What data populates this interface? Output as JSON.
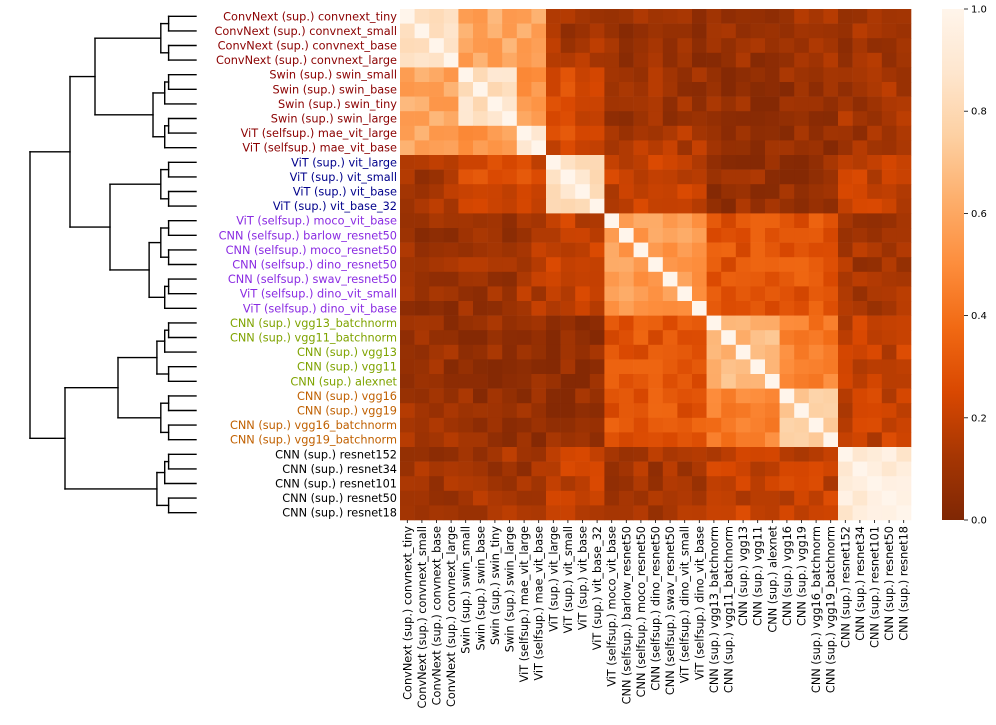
{
  "chart_data": {
    "type": "heatmap",
    "title": "",
    "xlabel": "",
    "ylabel": "",
    "row_labels": [
      "ConvNext (sup.) convnext_tiny",
      "ConvNext (sup.) convnext_small",
      "ConvNext (sup.) convnext_base",
      "ConvNext (sup.) convnext_large",
      "Swin (sup.) swin_small",
      "Swin (sup.) swin_base",
      "Swin (sup.) swin_tiny",
      "Swin (sup.) swin_large",
      "ViT (selfsup.) mae_vit_large",
      "ViT (selfsup.) mae_vit_base",
      "ViT (sup.) vit_large",
      "ViT (sup.) vit_small",
      "ViT (sup.) vit_base",
      "ViT (sup.) vit_base_32",
      "ViT (selfsup.) moco_vit_base",
      "CNN (selfsup.) barlow_resnet50",
      "CNN (selfsup.) moco_resnet50",
      "CNN (selfsup.) dino_resnet50",
      "CNN (selfsup.) swav_resnet50",
      "ViT (selfsup.) dino_vit_small",
      "ViT (selfsup.) dino_vit_base",
      "CNN (sup.) vgg13_batchnorm",
      "CNN (sup.) vgg11_batchnorm",
      "CNN (sup.) vgg13",
      "CNN (sup.) vgg11",
      "CNN (sup.) alexnet",
      "CNN (sup.) vgg16",
      "CNN (sup.) vgg19",
      "CNN (sup.) vgg16_batchnorm",
      "CNN (sup.) vgg19_batchnorm",
      "CNN (sup.) resnet152",
      "CNN (sup.) resnet34",
      "CNN (sup.) resnet101",
      "CNN (sup.) resnet50",
      "CNN (sup.) resnet18"
    ],
    "col_labels": [
      "ConvNext (sup.) convnext_tiny",
      "ConvNext (sup.) convnext_small",
      "ConvNext (sup.) convnext_base",
      "ConvNext (sup.) convnext_large",
      "Swin (sup.) swin_small",
      "Swin (sup.) swin_base",
      "Swin (sup.) swin_tiny",
      "Swin (sup.) swin_large",
      "ViT (selfsup.) mae_vit_large",
      "ViT (selfsup.) mae_vit_base",
      "ViT (sup.) vit_large",
      "ViT (sup.) vit_small",
      "ViT (sup.) vit_base",
      "ViT (sup.) vit_base_32",
      "ViT (selfsup.) moco_vit_base",
      "CNN (selfsup.) barlow_resnet50",
      "CNN (selfsup.) moco_resnet50",
      "CNN (selfsup.) dino_resnet50",
      "CNN (selfsup.) swav_resnet50",
      "ViT (selfsup.) dino_vit_small",
      "ViT (selfsup.) dino_vit_base",
      "CNN (sup.) vgg13_batchnorm",
      "CNN (sup.) vgg11_batchnorm",
      "CNN (sup.) vgg13",
      "CNN (sup.) vgg11",
      "CNN (sup.) alexnet",
      "CNN (sup.) vgg16",
      "CNN (sup.) vgg19",
      "CNN (sup.) vgg16_batchnorm",
      "CNN (sup.) vgg19_batchnorm",
      "CNN (sup.) resnet152",
      "CNN (sup.) resnet34",
      "CNN (sup.) resnet101",
      "CNN (sup.) resnet50",
      "CNN (sup.) resnet18"
    ],
    "row_label_colors": [
      "#8b0000",
      "#8b0000",
      "#8b0000",
      "#8b0000",
      "#8b0000",
      "#8b0000",
      "#8b0000",
      "#8b0000",
      "#8b0000",
      "#8b0000",
      "#00008b",
      "#00008b",
      "#00008b",
      "#00008b",
      "#8a2be2",
      "#8a2be2",
      "#8a2be2",
      "#8a2be2",
      "#8a2be2",
      "#8a2be2",
      "#8a2be2",
      "#7fa300",
      "#7fa300",
      "#7fa300",
      "#7fa300",
      "#7fa300",
      "#c06000",
      "#c06000",
      "#c06000",
      "#c06000",
      "#000000",
      "#000000",
      "#000000",
      "#000000",
      "#000000"
    ],
    "groups": [
      [
        0,
        3
      ],
      [
        4,
        7
      ],
      [
        8,
        9
      ],
      [
        10,
        13
      ],
      [
        14,
        20
      ],
      [
        21,
        25
      ],
      [
        26,
        29
      ],
      [
        30,
        34
      ]
    ],
    "block_values": [
      [
        0.88,
        0.6,
        0.58,
        0.12,
        0.08,
        0.08,
        0.1,
        0.1
      ],
      [
        0.6,
        0.85,
        0.55,
        0.25,
        0.1,
        0.08,
        0.08,
        0.12
      ],
      [
        0.58,
        0.55,
        0.9,
        0.25,
        0.15,
        0.08,
        0.08,
        0.1
      ],
      [
        0.12,
        0.25,
        0.25,
        0.85,
        0.2,
        0.08,
        0.06,
        0.2
      ],
      [
        0.08,
        0.1,
        0.15,
        0.2,
        0.55,
        0.3,
        0.3,
        0.12
      ],
      [
        0.08,
        0.08,
        0.08,
        0.06,
        0.3,
        0.65,
        0.45,
        0.2
      ],
      [
        0.1,
        0.08,
        0.08,
        0.06,
        0.3,
        0.45,
        0.75,
        0.2
      ],
      [
        0.1,
        0.12,
        0.1,
        0.2,
        0.12,
        0.2,
        0.2,
        0.92
      ]
    ],
    "colorbar": {
      "min": 0.0,
      "max": 1.0,
      "ticks": [
        "0.0",
        "0.2",
        "0.4",
        "0.6",
        "0.8",
        "1.0"
      ],
      "colormap": "Oranges_r",
      "stops": [
        "#7f2704",
        "#a63603",
        "#d94801",
        "#f16913",
        "#fd8d3c",
        "#fdae6b",
        "#fdd0a2",
        "#fee6ce",
        "#fff5eb"
      ]
    },
    "dendrogram": {
      "orientation": "left",
      "clusters": [
        [
          [
            0,
            3
          ],
          [
            4,
            9
          ]
        ],
        [
          [
            10,
            13
          ],
          [
            14,
            20
          ]
        ],
        [
          [
            21,
            25
          ],
          [
            26,
            29
          ]
        ],
        [
          [
            30,
            34
          ]
        ]
      ]
    },
    "grid": false,
    "legend": "none"
  }
}
